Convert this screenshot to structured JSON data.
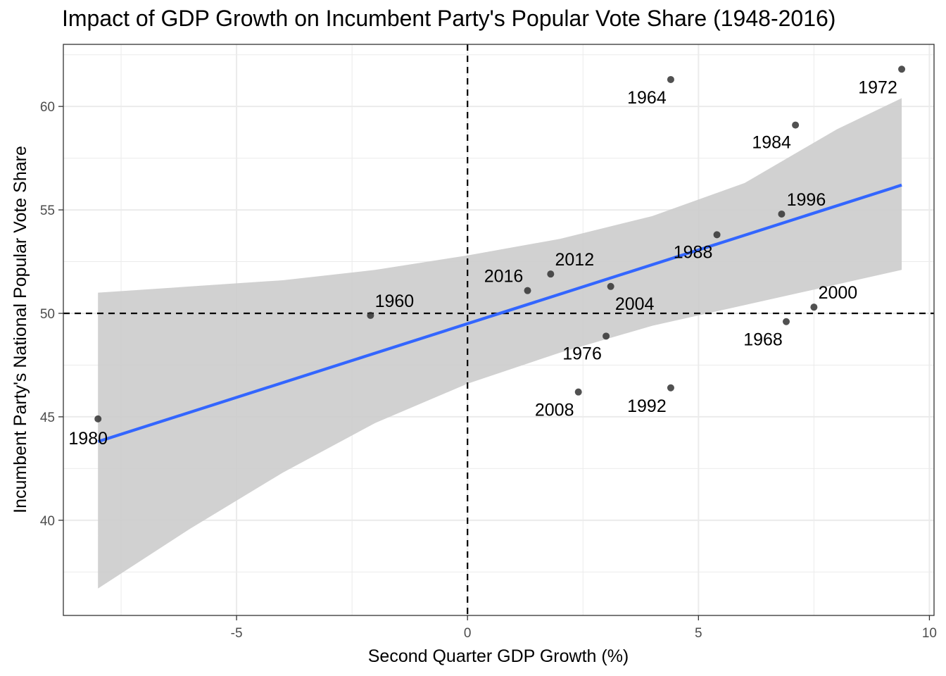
{
  "chart_data": {
    "type": "scatter",
    "title": "Impact of GDP Growth on Incumbent Party's Popular Vote Share (1948-2016)",
    "xlabel": "Second Quarter GDP Growth (%)",
    "ylabel": "Incumbent Party's National Popular Vote Share",
    "xlim": [
      -8.75,
      10.1
    ],
    "ylim": [
      35.4,
      63.0
    ],
    "x_ticks": [
      -5,
      0,
      5,
      10
    ],
    "y_ticks": [
      40,
      45,
      50,
      55,
      60
    ],
    "x_tick_labels": [
      "-5",
      "0",
      "5",
      "10"
    ],
    "y_tick_labels": [
      "40",
      "45",
      "50",
      "55",
      "60"
    ],
    "reference_lines": {
      "x": 0,
      "y": 50,
      "style": "dashed"
    },
    "points": [
      {
        "year": "1960",
        "x": -2.1,
        "y": 49.9
      },
      {
        "year": "1964",
        "x": 4.4,
        "y": 61.3
      },
      {
        "year": "1968",
        "x": 6.9,
        "y": 49.6
      },
      {
        "year": "1972",
        "x": 9.4,
        "y": 61.8
      },
      {
        "year": "1976",
        "x": 3.0,
        "y": 48.9
      },
      {
        "year": "1980",
        "x": -8.0,
        "y": 44.9
      },
      {
        "year": "1984",
        "x": 7.1,
        "y": 59.1
      },
      {
        "year": "1988",
        "x": 5.4,
        "y": 53.8
      },
      {
        "year": "1992",
        "x": 4.4,
        "y": 46.4
      },
      {
        "year": "1996",
        "x": 6.8,
        "y": 54.8
      },
      {
        "year": "2000",
        "x": 7.5,
        "y": 50.3
      },
      {
        "year": "2004",
        "x": 3.1,
        "y": 51.3
      },
      {
        "year": "2008",
        "x": 2.4,
        "y": 46.2
      },
      {
        "year": "2012",
        "x": 1.8,
        "y": 51.9
      },
      {
        "year": "2016",
        "x": 1.3,
        "y": 51.1
      }
    ],
    "fit_line": {
      "x": [
        -8.0,
        9.4
      ],
      "y": [
        43.8,
        56.2
      ],
      "color": "#3366FF"
    },
    "confidence_band": {
      "x": [
        -8.0,
        -6.0,
        -4.0,
        -2.0,
        0.0,
        2.0,
        4.0,
        6.0,
        8.0,
        9.4
      ],
      "lower": [
        36.7,
        39.6,
        42.3,
        44.7,
        46.6,
        48.1,
        49.4,
        50.4,
        51.4,
        52.1
      ],
      "upper": [
        51.0,
        51.3,
        51.6,
        52.1,
        52.8,
        53.6,
        54.7,
        56.3,
        58.9,
        60.4
      ],
      "color": "#cccccc"
    },
    "grid": true,
    "colors": {
      "points": "#333333",
      "fit": "#3366FF",
      "band": "#cccccc",
      "grid": "#ebebeb"
    }
  }
}
